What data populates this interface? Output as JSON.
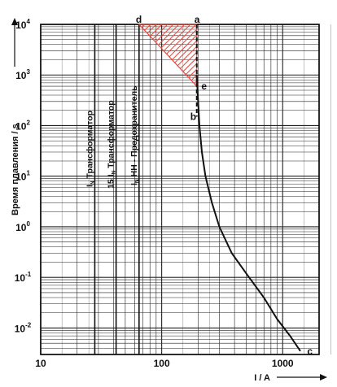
{
  "chart_data": {
    "type": "line",
    "xscale": "log",
    "yscale": "log",
    "xlim": [
      10,
      2000
    ],
    "ylim": [
      0.003,
      10000
    ],
    "grid": true,
    "xlabel": "I / A",
    "ylabel": "Время плавления / s",
    "x_ticks": [
      {
        "value": 10,
        "label": "10"
      },
      {
        "value": 100,
        "label": "100"
      },
      {
        "value": 1000,
        "label": "1000"
      }
    ],
    "y_ticks": [
      {
        "value": 0.01,
        "base": "10",
        "exp": "-2"
      },
      {
        "value": 0.1,
        "base": "10",
        "exp": "-1"
      },
      {
        "value": 1,
        "base": "10",
        "exp": "0"
      },
      {
        "value": 10,
        "base": "10",
        "exp": "1"
      },
      {
        "value": 100,
        "base": "10",
        "exp": "2"
      },
      {
        "value": 1000,
        "base": "10",
        "exp": "3"
      },
      {
        "value": 10000,
        "base": "10",
        "exp": "4"
      }
    ],
    "series": [
      {
        "color": "#111111",
        "x": [
          195,
          200,
          205,
          215,
          230,
          260,
          300,
          380,
          500,
          700,
          900,
          1150,
          1400
        ],
        "y": [
          1000,
          300,
          100,
          30,
          10,
          3,
          1,
          0.3,
          0.12,
          0.04,
          0.015,
          0.007,
          0.0035
        ]
      }
    ],
    "vertical_lines": [
      {
        "x": 28,
        "main": "Трансформатор",
        "prefix": "I",
        "sub": "N"
      },
      {
        "x": 42,
        "main": "Трансформатор",
        "prefix": "15 I",
        "sub": "N"
      },
      {
        "x": 65,
        "main": "НН - Предохранитель",
        "prefix": "I",
        "sub": "N"
      }
    ],
    "hatched_region": {
      "color": "#e8483c",
      "x": [
        65,
        195,
        195
      ],
      "y": [
        10000,
        10000,
        600
      ]
    },
    "points": [
      {
        "label": "d",
        "x": 65,
        "y": 10000
      },
      {
        "label": "a",
        "x": 195,
        "y": 10000
      },
      {
        "label": "e",
        "x": 200,
        "y": 600
      },
      {
        "label": "b",
        "x": 195,
        "y": 150
      },
      {
        "label": "c",
        "x": 1500,
        "y": 0.0035
      }
    ]
  }
}
